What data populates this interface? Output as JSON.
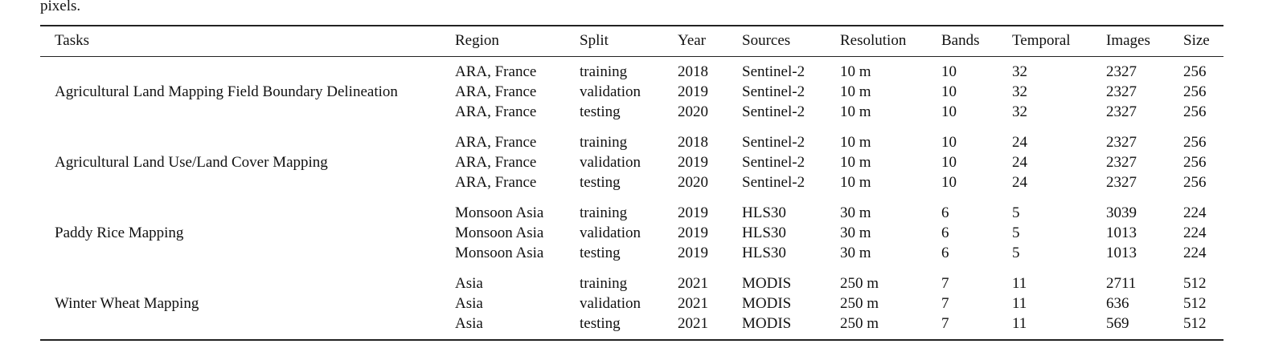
{
  "intro_text": "pixels.",
  "table": {
    "header": [
      "Tasks",
      "Region",
      "Split",
      "Year",
      "Sources",
      "Resolution",
      "Bands",
      "Temporal",
      "Images",
      "Size"
    ],
    "groups": [
      {
        "task": "Agricultural Land Mapping Field Boundary Delineation",
        "rows": [
          [
            "ARA, France",
            "training",
            "2018",
            "Sentinel-2",
            "10 m",
            "10",
            "32",
            "2327",
            "256"
          ],
          [
            "ARA, France",
            "validation",
            "2019",
            "Sentinel-2",
            "10 m",
            "10",
            "32",
            "2327",
            "256"
          ],
          [
            "ARA, France",
            "testing",
            "2020",
            "Sentinel-2",
            "10 m",
            "10",
            "32",
            "2327",
            "256"
          ]
        ]
      },
      {
        "task": "Agricultural Land Use/Land Cover Mapping",
        "rows": [
          [
            "ARA, France",
            "training",
            "2018",
            "Sentinel-2",
            "10 m",
            "10",
            "24",
            "2327",
            "256"
          ],
          [
            "ARA, France",
            "validation",
            "2019",
            "Sentinel-2",
            "10 m",
            "10",
            "24",
            "2327",
            "256"
          ],
          [
            "ARA, France",
            "testing",
            "2020",
            "Sentinel-2",
            "10 m",
            "10",
            "24",
            "2327",
            "256"
          ]
        ]
      },
      {
        "task": "Paddy Rice Mapping",
        "rows": [
          [
            "Monsoon Asia",
            "training",
            "2019",
            "HLS30",
            "30 m",
            "6",
            "5",
            "3039",
            "224"
          ],
          [
            "Monsoon Asia",
            "validation",
            "2019",
            "HLS30",
            "30 m",
            "6",
            "5",
            "1013",
            "224"
          ],
          [
            "Monsoon Asia",
            "testing",
            "2019",
            "HLS30",
            "30 m",
            "6",
            "5",
            "1013",
            "224"
          ]
        ]
      },
      {
        "task": "Winter Wheat Mapping",
        "rows": [
          [
            "Asia",
            "training",
            "2021",
            "MODIS",
            "250 m",
            "7",
            "11",
            "2711",
            "512"
          ],
          [
            "Asia",
            "validation",
            "2021",
            "MODIS",
            "250 m",
            "7",
            "11",
            "636",
            "512"
          ],
          [
            "Asia",
            "testing",
            "2021",
            "MODIS",
            "250 m",
            "7",
            "11",
            "569",
            "512"
          ]
        ]
      }
    ]
  }
}
